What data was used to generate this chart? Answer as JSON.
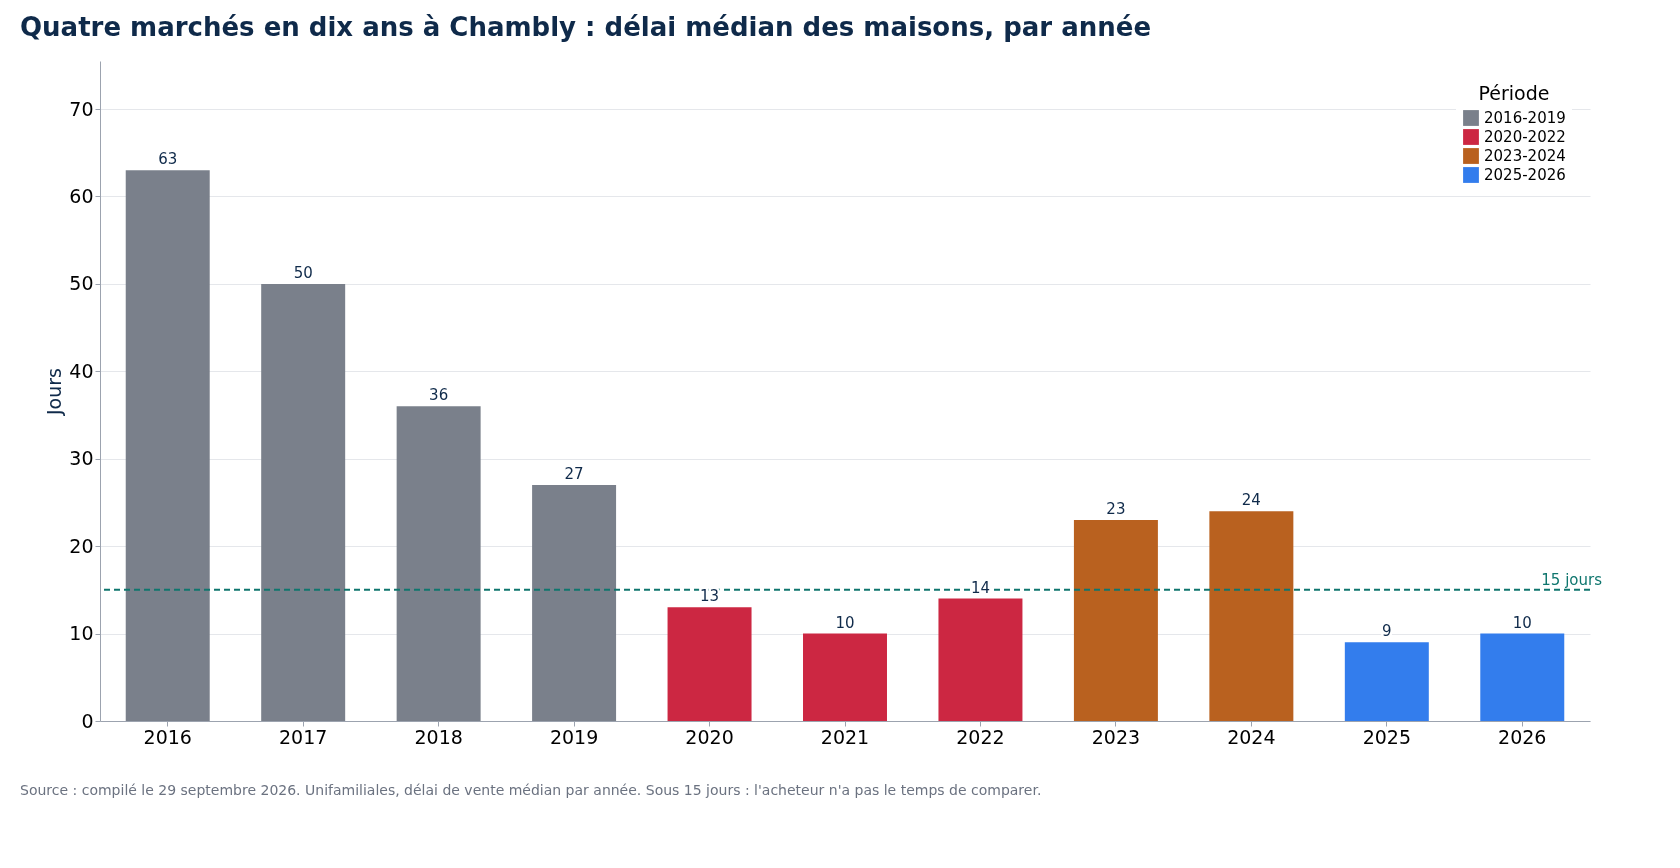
{
  "chart_data": {
    "type": "bar",
    "title": "Quatre marchés en dix ans à Chambly : délai médian des maisons, par année",
    "ylabel": "Jours",
    "legend_title": "Période",
    "categories": [
      "2016",
      "2017",
      "2018",
      "2019",
      "2020",
      "2021",
      "2022",
      "2023",
      "2024",
      "2025",
      "2026"
    ],
    "series": [
      {
        "name": "2016-2019",
        "color": "#7a808b",
        "values": [
          63,
          50,
          36,
          27,
          null,
          null,
          null,
          null,
          null,
          null,
          null
        ]
      },
      {
        "name": "2020-2022",
        "color": "#cc2742",
        "values": [
          null,
          null,
          null,
          null,
          13,
          10,
          14,
          null,
          null,
          null,
          null
        ]
      },
      {
        "name": "2023-2024",
        "color": "#b9611f",
        "values": [
          null,
          null,
          null,
          null,
          null,
          null,
          null,
          23,
          24,
          null,
          null
        ]
      },
      {
        "name": "2025-2026",
        "color": "#337ded",
        "values": [
          null,
          null,
          null,
          null,
          null,
          null,
          null,
          null,
          null,
          9,
          10
        ]
      }
    ],
    "ylim": [
      0,
      75.5
    ],
    "yticks": [
      0,
      10,
      20,
      30,
      40,
      50,
      60,
      70
    ],
    "grid": "y",
    "legend": "top right",
    "data_labels": true,
    "ref_lines": [
      {
        "axis": "y",
        "value": 15,
        "label": "15 jours",
        "color": "#0f766e",
        "line_style": "dashed"
      }
    ],
    "annotations": [
      "Source : compilé le 29 septembre 2026. Unifamiliales, délai de vente médian par année. Sous 15 jours : l'acheteur n'a pas le temps de comparer."
    ]
  }
}
